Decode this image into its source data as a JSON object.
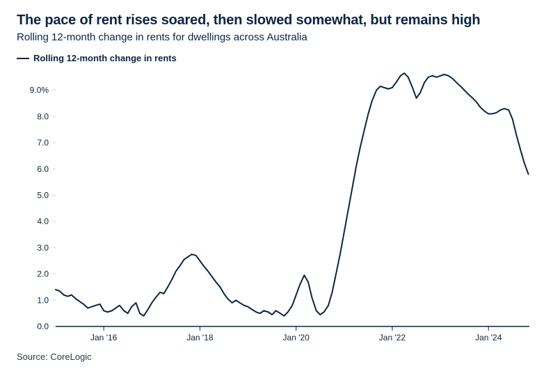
{
  "title": "The pace of rent rises soared, then slowed somewhat, but remains high",
  "subtitle": "Rolling 12-month change in rents for dwellings across Australia",
  "legend_label": "Rolling 12-month change in rents",
  "source": "Source: CoreLogic",
  "chart": {
    "type": "line",
    "line_color": "#0a2540",
    "line_width": 2,
    "background_color": "#ffffff",
    "axis_color": "#0a2540",
    "gridline_color": "#d0d6dd",
    "text_color": "#0a2540",
    "axis_fontsize": 12,
    "ylim": [
      0,
      9.6
    ],
    "ytick_values": [
      0,
      1,
      2,
      3,
      4,
      5,
      6,
      7,
      8,
      9
    ],
    "ytick_labels": [
      "0.0",
      "1.0",
      "2.0",
      "3.0",
      "4.0",
      "5.0",
      "6.0",
      "7.0",
      "8.0",
      "9.0%"
    ],
    "xlim": [
      2015.0,
      2024.85
    ],
    "xtick_values": [
      2016,
      2018,
      2020,
      2022,
      2024
    ],
    "xtick_labels": [
      "Jan '16",
      "Jan '18",
      "Jan '20",
      "Jan '22",
      "Jan '24"
    ],
    "series": [
      {
        "name": "Rolling 12-month change in rents",
        "x": [
          2015.0,
          2015.08,
          2015.17,
          2015.25,
          2015.33,
          2015.42,
          2015.5,
          2015.58,
          2015.67,
          2015.75,
          2015.83,
          2015.92,
          2016.0,
          2016.08,
          2016.17,
          2016.25,
          2016.33,
          2016.42,
          2016.5,
          2016.58,
          2016.67,
          2016.75,
          2016.83,
          2016.92,
          2017.0,
          2017.08,
          2017.17,
          2017.25,
          2017.33,
          2017.42,
          2017.5,
          2017.58,
          2017.67,
          2017.75,
          2017.83,
          2017.92,
          2018.0,
          2018.08,
          2018.17,
          2018.25,
          2018.33,
          2018.42,
          2018.5,
          2018.58,
          2018.67,
          2018.75,
          2018.83,
          2018.92,
          2019.0,
          2019.08,
          2019.17,
          2019.25,
          2019.33,
          2019.42,
          2019.5,
          2019.58,
          2019.67,
          2019.75,
          2019.83,
          2019.92,
          2020.0,
          2020.08,
          2020.17,
          2020.25,
          2020.33,
          2020.42,
          2020.5,
          2020.58,
          2020.67,
          2020.75,
          2020.83,
          2020.92,
          2021.0,
          2021.08,
          2021.17,
          2021.25,
          2021.33,
          2021.42,
          2021.5,
          2021.58,
          2021.67,
          2021.75,
          2021.83,
          2021.92,
          2022.0,
          2022.08,
          2022.17,
          2022.25,
          2022.33,
          2022.42,
          2022.5,
          2022.58,
          2022.67,
          2022.75,
          2022.83,
          2022.92,
          2023.0,
          2023.08,
          2023.17,
          2023.25,
          2023.33,
          2023.42,
          2023.5,
          2023.58,
          2023.67,
          2023.75,
          2023.83,
          2023.92,
          2024.0,
          2024.08,
          2024.17,
          2024.25,
          2024.33,
          2024.42,
          2024.5,
          2024.58,
          2024.67,
          2024.75,
          2024.83
        ],
        "y": [
          1.4,
          1.35,
          1.2,
          1.15,
          1.2,
          1.05,
          0.95,
          0.85,
          0.7,
          0.75,
          0.8,
          0.85,
          0.6,
          0.55,
          0.6,
          0.7,
          0.8,
          0.6,
          0.5,
          0.75,
          0.9,
          0.5,
          0.4,
          0.65,
          0.9,
          1.1,
          1.3,
          1.25,
          1.5,
          1.8,
          2.1,
          2.3,
          2.55,
          2.65,
          2.75,
          2.7,
          2.5,
          2.3,
          2.1,
          1.9,
          1.7,
          1.5,
          1.25,
          1.05,
          0.9,
          1.0,
          0.9,
          0.8,
          0.75,
          0.65,
          0.55,
          0.5,
          0.6,
          0.55,
          0.45,
          0.6,
          0.5,
          0.4,
          0.55,
          0.8,
          1.2,
          1.6,
          1.95,
          1.7,
          1.1,
          0.6,
          0.45,
          0.55,
          0.8,
          1.3,
          2.0,
          2.8,
          3.6,
          4.4,
          5.3,
          6.1,
          6.8,
          7.5,
          8.1,
          8.6,
          9.0,
          9.15,
          9.1,
          9.05,
          9.1,
          9.3,
          9.55,
          9.65,
          9.5,
          9.1,
          8.7,
          8.9,
          9.3,
          9.5,
          9.55,
          9.5,
          9.55,
          9.6,
          9.55,
          9.45,
          9.3,
          9.15,
          9.0,
          8.85,
          8.7,
          8.55,
          8.35,
          8.2,
          8.1,
          8.1,
          8.15,
          8.25,
          8.3,
          8.25,
          7.9,
          7.3,
          6.7,
          6.2,
          5.8
        ]
      }
    ]
  }
}
